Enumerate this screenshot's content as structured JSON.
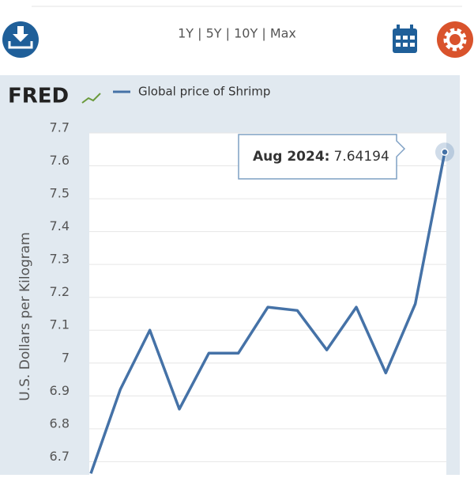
{
  "toolbar": {
    "range_selector": "1Y | 5Y | 10Y | Max"
  },
  "logo": "FRED",
  "chart_data": {
    "type": "line",
    "y_label": "U.S. Dollars per Kilogram",
    "categories": [
      null,
      null,
      null,
      null,
      null,
      null,
      null,
      null,
      null,
      null,
      null,
      null,
      null
    ],
    "series": [
      {
        "name": "Global price of Shrimp",
        "color": "#4572a7",
        "values": [
          6.664,
          6.92,
          7.1,
          6.86,
          7.03,
          7.03,
          7.17,
          7.16,
          7.04,
          7.17,
          6.97,
          7.18,
          7.64194
        ]
      }
    ],
    "ylim": [
      6.66,
      7.7
    ],
    "yticks": [
      6.7,
      6.8,
      6.9,
      7.0,
      7.1,
      7.2,
      7.3,
      7.4,
      7.5,
      7.6,
      7.7
    ],
    "grid": true,
    "tooltip": {
      "label": "Aug 2024:"
    }
  }
}
